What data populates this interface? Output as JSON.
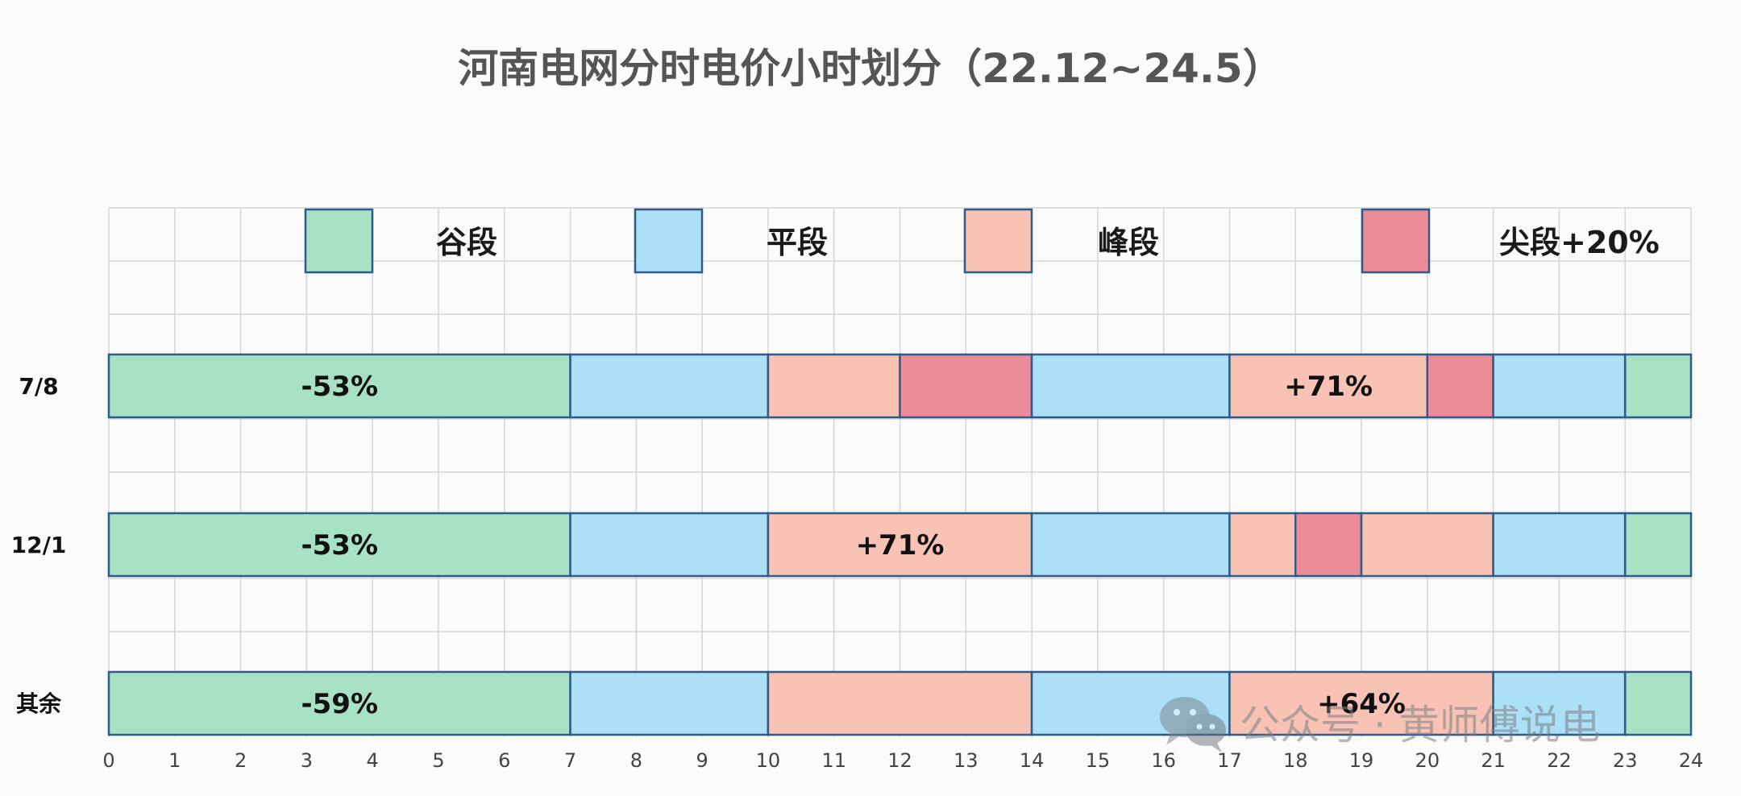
{
  "title": "河南电网分时电价小时划分（22.12~24.5）",
  "watermark": "公众号 · 黄师傅说电",
  "colors": {
    "valley": "#a8e2c4",
    "flat": "#ace0f6",
    "peak": "#f8c3b4",
    "sharp": "#ec8c98",
    "border": "#2f5b8a",
    "grid": "#d6d6d6"
  },
  "legend": [
    {
      "key": "valley",
      "label": "谷段"
    },
    {
      "key": "flat",
      "label": "平段"
    },
    {
      "key": "peak",
      "label": "峰段"
    },
    {
      "key": "sharp",
      "label": "尖段+20%"
    }
  ],
  "chart_data": {
    "type": "bar",
    "orientation": "horizontal-stacked-timeline",
    "x_unit": "hour",
    "xlim": [
      0,
      24
    ],
    "x_ticks": [
      "0",
      "1",
      "2",
      "3",
      "4",
      "5",
      "6",
      "7",
      "8",
      "9",
      "10",
      "11",
      "12",
      "13",
      "14",
      "15",
      "16",
      "17",
      "18",
      "19",
      "20",
      "21",
      "22",
      "23",
      "24"
    ],
    "grid": true,
    "legend_position": "top",
    "rows": [
      {
        "label": "7/8",
        "segments": [
          {
            "start": 0,
            "end": 7,
            "type": "valley"
          },
          {
            "start": 7,
            "end": 10,
            "type": "flat"
          },
          {
            "start": 10,
            "end": 12,
            "type": "peak"
          },
          {
            "start": 12,
            "end": 14,
            "type": "sharp"
          },
          {
            "start": 14,
            "end": 17,
            "type": "flat"
          },
          {
            "start": 17,
            "end": 20,
            "type": "peak"
          },
          {
            "start": 20,
            "end": 21,
            "type": "sharp"
          },
          {
            "start": 21,
            "end": 23,
            "type": "flat"
          },
          {
            "start": 23,
            "end": 24,
            "type": "valley"
          }
        ],
        "annotations": [
          {
            "text": "-53%",
            "x": 3.5
          },
          {
            "text": "+71%",
            "x": 18.5
          }
        ]
      },
      {
        "label": "12/1",
        "segments": [
          {
            "start": 0,
            "end": 7,
            "type": "valley"
          },
          {
            "start": 7,
            "end": 10,
            "type": "flat"
          },
          {
            "start": 10,
            "end": 14,
            "type": "peak"
          },
          {
            "start": 14,
            "end": 17,
            "type": "flat"
          },
          {
            "start": 17,
            "end": 18,
            "type": "peak"
          },
          {
            "start": 18,
            "end": 19,
            "type": "sharp"
          },
          {
            "start": 19,
            "end": 21,
            "type": "peak"
          },
          {
            "start": 21,
            "end": 23,
            "type": "flat"
          },
          {
            "start": 23,
            "end": 24,
            "type": "valley"
          }
        ],
        "annotations": [
          {
            "text": "-53%",
            "x": 3.5
          },
          {
            "text": "+71%",
            "x": 12
          }
        ]
      },
      {
        "label": "其余",
        "segments": [
          {
            "start": 0,
            "end": 7,
            "type": "valley"
          },
          {
            "start": 7,
            "end": 10,
            "type": "flat"
          },
          {
            "start": 10,
            "end": 14,
            "type": "peak"
          },
          {
            "start": 14,
            "end": 17,
            "type": "flat"
          },
          {
            "start": 17,
            "end": 21,
            "type": "peak"
          },
          {
            "start": 21,
            "end": 23,
            "type": "flat"
          },
          {
            "start": 23,
            "end": 24,
            "type": "valley"
          }
        ],
        "annotations": [
          {
            "text": "-59%",
            "x": 3.5
          },
          {
            "text": "+64%",
            "x": 19
          }
        ]
      }
    ]
  }
}
